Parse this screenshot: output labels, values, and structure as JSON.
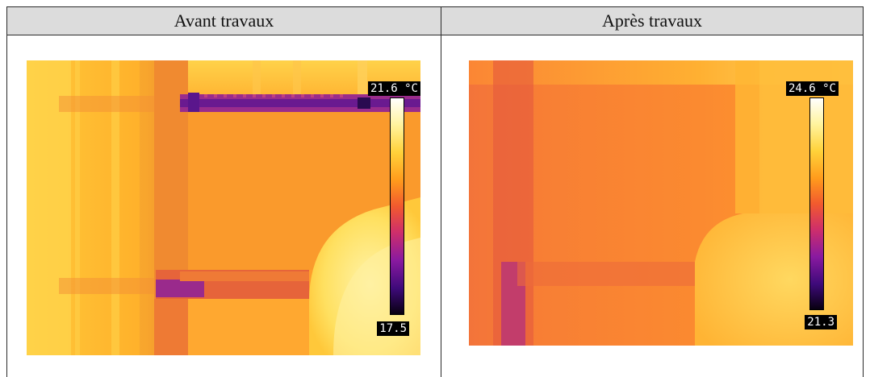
{
  "panels": [
    {
      "title": "Avant travaux",
      "scale_max": "21.6 °C",
      "scale_min": "17.5"
    },
    {
      "title": "Après travaux",
      "scale_max": "24.6 °C",
      "scale_min": "21.3"
    }
  ]
}
